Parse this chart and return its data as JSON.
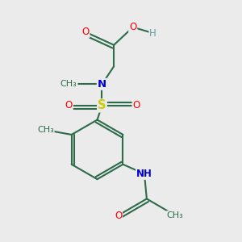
{
  "bg_color": "#ebebeb",
  "bond_color": "#2d6b4a",
  "bond_width": 1.5,
  "fig_size": [
    3.0,
    3.0
  ],
  "dpi": 100,
  "colors": {
    "C": "#2d6b4a",
    "O": "#ff0000",
    "N": "#0000cc",
    "S": "#cccc00",
    "H": "#5a9ea0"
  },
  "layout": {
    "xlim": [
      0,
      1
    ],
    "ylim": [
      0,
      1
    ]
  }
}
